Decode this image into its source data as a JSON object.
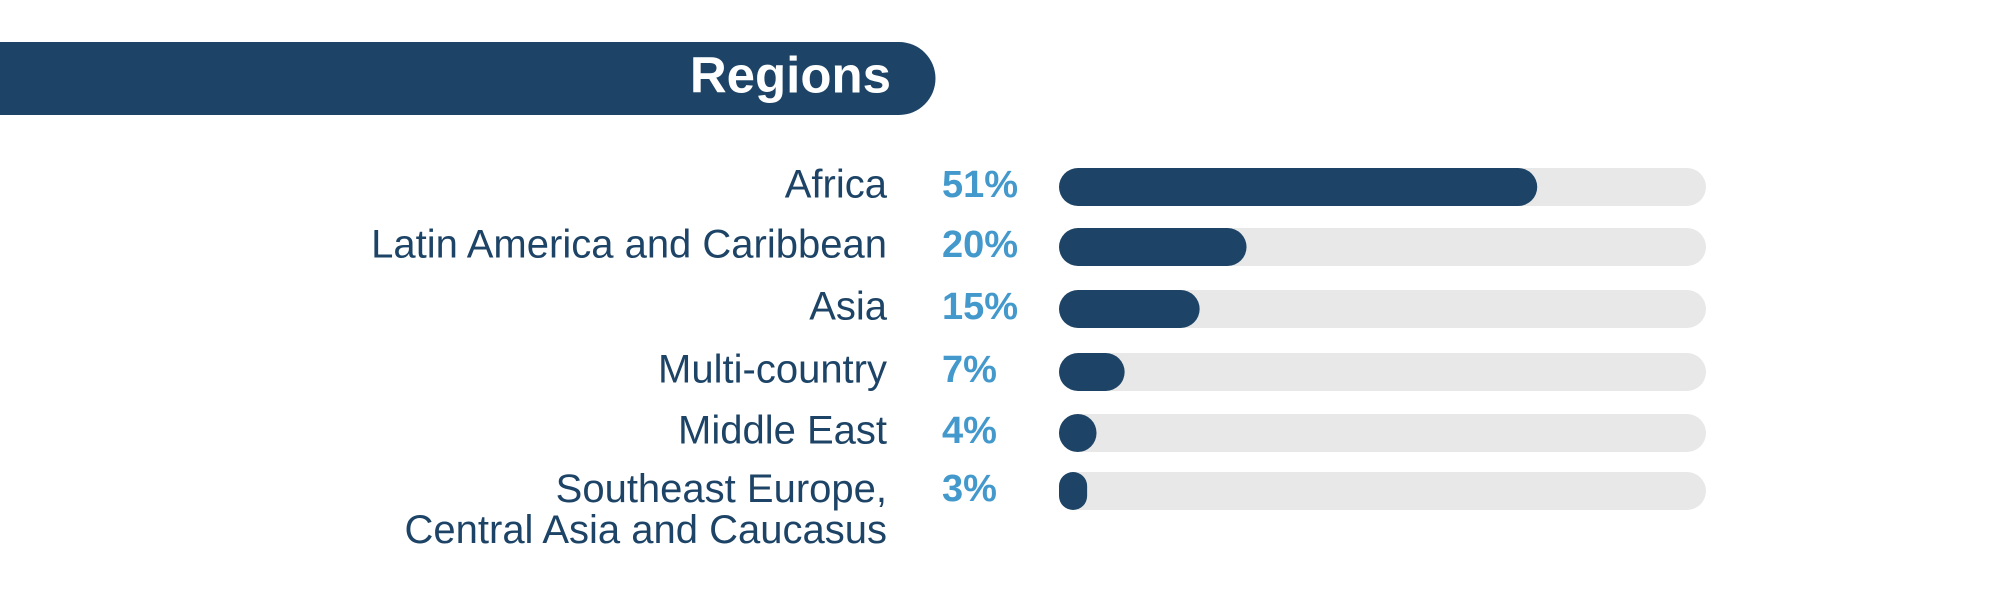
{
  "chart_data": {
    "type": "bar",
    "orientation": "horizontal",
    "title": "Regions",
    "categories": [
      "Africa",
      "Latin America and Caribbean",
      "Asia",
      "Multi-country",
      "Middle East",
      "Southeast Europe,\nCentral Asia and Caucasus"
    ],
    "values": [
      51,
      20,
      15,
      7,
      4,
      3
    ],
    "value_labels": [
      "51%",
      "20%",
      "15%",
      "7%",
      "4%",
      "3%"
    ],
    "xlim": [
      0,
      69
    ],
    "color": "#1d4466",
    "track_color": "#e8e8e8",
    "label_color": "#4499cc"
  }
}
